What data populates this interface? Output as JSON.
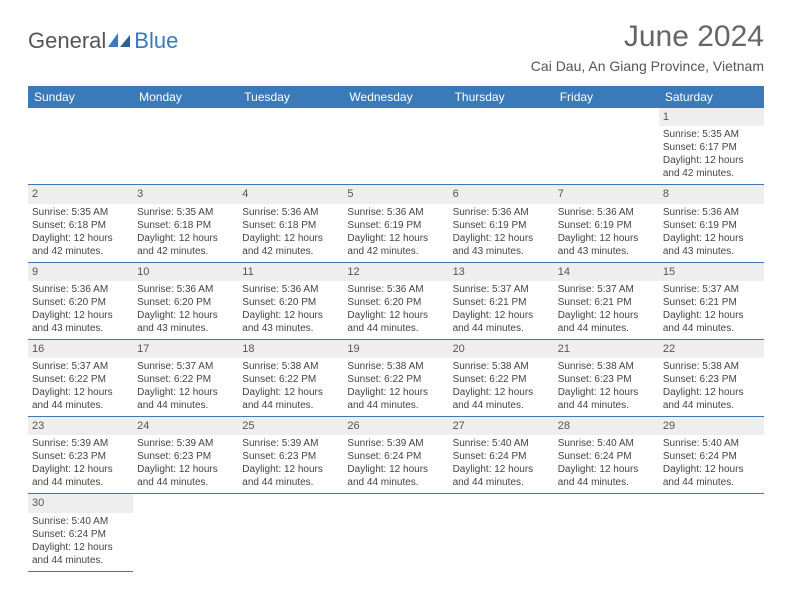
{
  "brand": {
    "name_a": "General",
    "name_b": "Blue"
  },
  "title": "June 2024",
  "location": "Cai Dau, An Giang Province, Vietnam",
  "colors": {
    "header_bg": "#3a7ab8",
    "header_fg": "#ffffff",
    "daynum_bg": "#eeeeee",
    "border": "#3a7ab8"
  },
  "day_headers": [
    "Sunday",
    "Monday",
    "Tuesday",
    "Wednesday",
    "Thursday",
    "Friday",
    "Saturday"
  ],
  "weeks": [
    [
      null,
      null,
      null,
      null,
      null,
      null,
      {
        "n": "1",
        "sr": "5:35 AM",
        "ss": "6:17 PM",
        "dl": "12 hours and 42 minutes."
      }
    ],
    [
      {
        "n": "2",
        "sr": "5:35 AM",
        "ss": "6:18 PM",
        "dl": "12 hours and 42 minutes."
      },
      {
        "n": "3",
        "sr": "5:35 AM",
        "ss": "6:18 PM",
        "dl": "12 hours and 42 minutes."
      },
      {
        "n": "4",
        "sr": "5:36 AM",
        "ss": "6:18 PM",
        "dl": "12 hours and 42 minutes."
      },
      {
        "n": "5",
        "sr": "5:36 AM",
        "ss": "6:19 PM",
        "dl": "12 hours and 42 minutes."
      },
      {
        "n": "6",
        "sr": "5:36 AM",
        "ss": "6:19 PM",
        "dl": "12 hours and 43 minutes."
      },
      {
        "n": "7",
        "sr": "5:36 AM",
        "ss": "6:19 PM",
        "dl": "12 hours and 43 minutes."
      },
      {
        "n": "8",
        "sr": "5:36 AM",
        "ss": "6:19 PM",
        "dl": "12 hours and 43 minutes."
      }
    ],
    [
      {
        "n": "9",
        "sr": "5:36 AM",
        "ss": "6:20 PM",
        "dl": "12 hours and 43 minutes."
      },
      {
        "n": "10",
        "sr": "5:36 AM",
        "ss": "6:20 PM",
        "dl": "12 hours and 43 minutes."
      },
      {
        "n": "11",
        "sr": "5:36 AM",
        "ss": "6:20 PM",
        "dl": "12 hours and 43 minutes."
      },
      {
        "n": "12",
        "sr": "5:36 AM",
        "ss": "6:20 PM",
        "dl": "12 hours and 44 minutes."
      },
      {
        "n": "13",
        "sr": "5:37 AM",
        "ss": "6:21 PM",
        "dl": "12 hours and 44 minutes."
      },
      {
        "n": "14",
        "sr": "5:37 AM",
        "ss": "6:21 PM",
        "dl": "12 hours and 44 minutes."
      },
      {
        "n": "15",
        "sr": "5:37 AM",
        "ss": "6:21 PM",
        "dl": "12 hours and 44 minutes."
      }
    ],
    [
      {
        "n": "16",
        "sr": "5:37 AM",
        "ss": "6:22 PM",
        "dl": "12 hours and 44 minutes."
      },
      {
        "n": "17",
        "sr": "5:37 AM",
        "ss": "6:22 PM",
        "dl": "12 hours and 44 minutes."
      },
      {
        "n": "18",
        "sr": "5:38 AM",
        "ss": "6:22 PM",
        "dl": "12 hours and 44 minutes."
      },
      {
        "n": "19",
        "sr": "5:38 AM",
        "ss": "6:22 PM",
        "dl": "12 hours and 44 minutes."
      },
      {
        "n": "20",
        "sr": "5:38 AM",
        "ss": "6:22 PM",
        "dl": "12 hours and 44 minutes."
      },
      {
        "n": "21",
        "sr": "5:38 AM",
        "ss": "6:23 PM",
        "dl": "12 hours and 44 minutes."
      },
      {
        "n": "22",
        "sr": "5:38 AM",
        "ss": "6:23 PM",
        "dl": "12 hours and 44 minutes."
      }
    ],
    [
      {
        "n": "23",
        "sr": "5:39 AM",
        "ss": "6:23 PM",
        "dl": "12 hours and 44 minutes."
      },
      {
        "n": "24",
        "sr": "5:39 AM",
        "ss": "6:23 PM",
        "dl": "12 hours and 44 minutes."
      },
      {
        "n": "25",
        "sr": "5:39 AM",
        "ss": "6:23 PM",
        "dl": "12 hours and 44 minutes."
      },
      {
        "n": "26",
        "sr": "5:39 AM",
        "ss": "6:24 PM",
        "dl": "12 hours and 44 minutes."
      },
      {
        "n": "27",
        "sr": "5:40 AM",
        "ss": "6:24 PM",
        "dl": "12 hours and 44 minutes."
      },
      {
        "n": "28",
        "sr": "5:40 AM",
        "ss": "6:24 PM",
        "dl": "12 hours and 44 minutes."
      },
      {
        "n": "29",
        "sr": "5:40 AM",
        "ss": "6:24 PM",
        "dl": "12 hours and 44 minutes."
      }
    ],
    [
      {
        "n": "30",
        "sr": "5:40 AM",
        "ss": "6:24 PM",
        "dl": "12 hours and 44 minutes."
      },
      null,
      null,
      null,
      null,
      null,
      null
    ]
  ],
  "labels": {
    "sunrise": "Sunrise:",
    "sunset": "Sunset:",
    "daylight": "Daylight:"
  }
}
